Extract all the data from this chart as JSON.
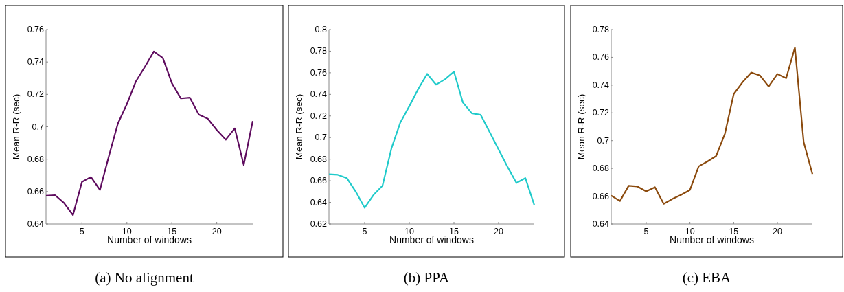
{
  "chart_data": [
    {
      "type": "line",
      "title": "(a) No alignment",
      "xlabel": "Number of windows",
      "ylabel": "Mean R-R (sec)",
      "x": [
        1,
        2,
        3,
        4,
        5,
        6,
        7,
        8,
        9,
        10,
        11,
        12,
        13,
        14,
        15,
        16,
        17,
        18,
        19,
        20,
        21,
        22,
        23,
        24
      ],
      "xlim": [
        1,
        24
      ],
      "xticks": [
        5,
        10,
        15,
        20
      ],
      "ylim": [
        0.64,
        0.76
      ],
      "yticks": [
        0.64,
        0.66,
        0.68,
        0.7,
        0.72,
        0.74,
        0.76
      ],
      "series": [
        {
          "color": "#5e0b5e",
          "values": [
            0.6575,
            0.6578,
            0.653,
            0.6455,
            0.666,
            0.669,
            0.661,
            0.682,
            0.702,
            0.714,
            0.728,
            0.737,
            0.7465,
            0.7425,
            0.727,
            0.7175,
            0.718,
            0.7075,
            0.705,
            0.698,
            0.692,
            0.699,
            0.6765,
            0.7035
          ]
        }
      ]
    },
    {
      "type": "line",
      "title": "(b) PPA",
      "xlabel": "Number of windows",
      "ylabel": "Mean R-R (sec)",
      "x": [
        1,
        2,
        3,
        4,
        5,
        6,
        7,
        8,
        9,
        10,
        11,
        12,
        13,
        14,
        15,
        16,
        17,
        18,
        19,
        20,
        21,
        22,
        23,
        24
      ],
      "xlim": [
        1,
        24
      ],
      "xticks": [
        5,
        10,
        15,
        20
      ],
      "ylim": [
        0.62,
        0.8
      ],
      "yticks": [
        0.62,
        0.64,
        0.66,
        0.68,
        0.7,
        0.72,
        0.74,
        0.76,
        0.78,
        0.8
      ],
      "series": [
        {
          "color": "#1fcaca",
          "values": [
            0.666,
            0.6655,
            0.6625,
            0.65,
            0.635,
            0.647,
            0.6555,
            0.69,
            0.714,
            0.729,
            0.745,
            0.759,
            0.749,
            0.754,
            0.761,
            0.7325,
            0.7225,
            0.721,
            0.705,
            0.689,
            0.673,
            0.658,
            0.6625,
            0.6375
          ]
        }
      ]
    },
    {
      "type": "line",
      "title": "(c) EBA",
      "xlabel": "Number of windows",
      "ylabel": "Mean R-R (sec)",
      "x": [
        1,
        2,
        3,
        4,
        5,
        6,
        7,
        8,
        9,
        10,
        11,
        12,
        13,
        14,
        15,
        16,
        17,
        18,
        19,
        20,
        21,
        22,
        23,
        24
      ],
      "xlim": [
        1,
        24
      ],
      "xticks": [
        5,
        10,
        15,
        20
      ],
      "ylim": [
        0.64,
        0.78
      ],
      "yticks": [
        0.64,
        0.66,
        0.68,
        0.7,
        0.72,
        0.74,
        0.76,
        0.78
      ],
      "series": [
        {
          "color": "#8b4a0d",
          "values": [
            0.6605,
            0.6565,
            0.6675,
            0.667,
            0.6635,
            0.6665,
            0.6545,
            0.658,
            0.661,
            0.6645,
            0.6815,
            0.685,
            0.689,
            0.705,
            0.7335,
            0.742,
            0.749,
            0.747,
            0.739,
            0.748,
            0.745,
            0.767,
            0.699,
            0.676
          ]
        }
      ]
    }
  ]
}
